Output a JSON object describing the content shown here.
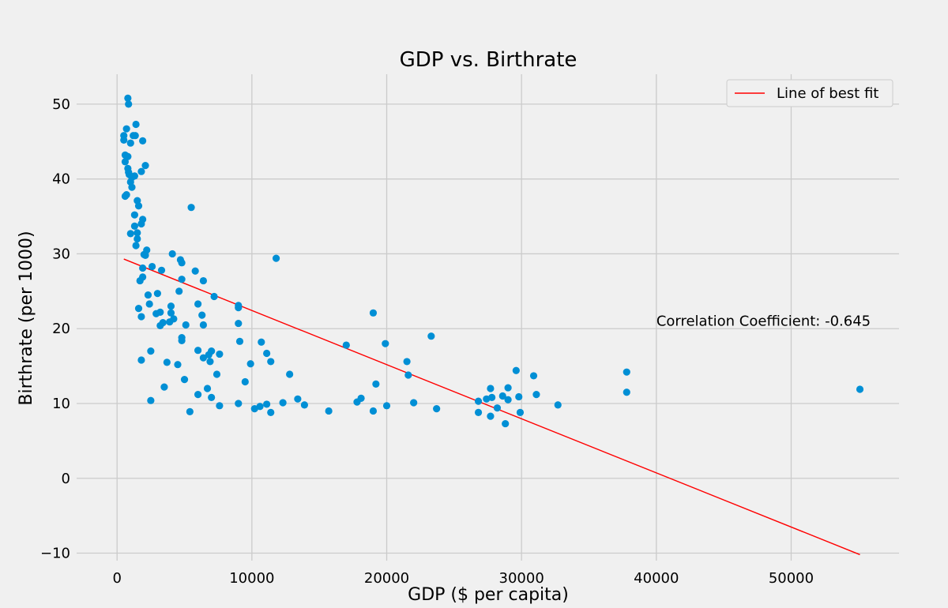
{
  "chart_data": {
    "type": "scatter",
    "title": "GDP vs. Birthrate",
    "xlabel": "GDP ($ per capita)",
    "ylabel": "Birthrate (per 1000)",
    "xlim": [
      -3000,
      58000
    ],
    "ylim": [
      -11,
      54
    ],
    "xticks": [
      0,
      10000,
      20000,
      30000,
      40000,
      50000
    ],
    "xtick_labels": [
      "0",
      "10000",
      "20000",
      "30000",
      "40000",
      "50000"
    ],
    "yticks": [
      -10,
      0,
      10,
      20,
      30,
      40,
      50
    ],
    "ytick_labels": [
      "−10",
      "0",
      "10",
      "20",
      "30",
      "40",
      "50"
    ],
    "grid": true,
    "legend": {
      "position": "top-right",
      "entries": [
        {
          "label": "Line of best fit",
          "color": "#ff0000",
          "marker": "line"
        }
      ]
    },
    "annotation": {
      "text": "Correlation Coefficient: -0.645",
      "x": 40000,
      "y": 20.5
    },
    "point_color": "#008fd5",
    "fit_line": {
      "label": "Line of best fit",
      "color": "#ff0000",
      "x": [
        500,
        55100
      ],
      "y": [
        29.3,
        -10.2
      ]
    },
    "points": [
      [
        800,
        50.8
      ],
      [
        850,
        50
      ],
      [
        1400,
        47.3
      ],
      [
        700,
        46.7
      ],
      [
        1200,
        45.8
      ],
      [
        500,
        45.8
      ],
      [
        1350,
        45.8
      ],
      [
        500,
        45.2
      ],
      [
        1900,
        45.1
      ],
      [
        1000,
        44.8
      ],
      [
        600,
        43.2
      ],
      [
        800,
        43
      ],
      [
        600,
        42.3
      ],
      [
        2100,
        41.8
      ],
      [
        800,
        41.4
      ],
      [
        850,
        40.9
      ],
      [
        1800,
        41
      ],
      [
        900,
        40.6
      ],
      [
        1300,
        40.4
      ],
      [
        1100,
        40.2
      ],
      [
        1000,
        39.6
      ],
      [
        1100,
        38.9
      ],
      [
        700,
        37.9
      ],
      [
        600,
        37.7
      ],
      [
        1500,
        37.1
      ],
      [
        1600,
        36.4
      ],
      [
        5500,
        36.2
      ],
      [
        1300,
        35.2
      ],
      [
        1900,
        34.6
      ],
      [
        1800,
        34
      ],
      [
        1300,
        33.7
      ],
      [
        1500,
        32.8
      ],
      [
        1000,
        32.7
      ],
      [
        1500,
        32
      ],
      [
        1400,
        31.1
      ],
      [
        2200,
        30.5
      ],
      [
        2000,
        29.9
      ],
      [
        4100,
        30
      ],
      [
        2100,
        29.8
      ],
      [
        11800,
        29.4
      ],
      [
        4700,
        29.2
      ],
      [
        4800,
        28.8
      ],
      [
        2600,
        28.3
      ],
      [
        1900,
        28.1
      ],
      [
        3300,
        27.8
      ],
      [
        5800,
        27.7
      ],
      [
        1900,
        26.9
      ],
      [
        4800,
        26.6
      ],
      [
        1700,
        26.4
      ],
      [
        6400,
        26.4
      ],
      [
        4600,
        25
      ],
      [
        3000,
        24.7
      ],
      [
        2300,
        24.5
      ],
      [
        7200,
        24.3
      ],
      [
        6000,
        23.3
      ],
      [
        2400,
        23.3
      ],
      [
        9000,
        23.1
      ],
      [
        4000,
        23
      ],
      [
        9000,
        22.8
      ],
      [
        1600,
        22.7
      ],
      [
        3200,
        22.2
      ],
      [
        2900,
        22
      ],
      [
        19000,
        22.1
      ],
      [
        4000,
        22.1
      ],
      [
        6300,
        21.8
      ],
      [
        1800,
        21.6
      ],
      [
        4200,
        21.3
      ],
      [
        3900,
        20.9
      ],
      [
        3400,
        20.8
      ],
      [
        3200,
        20.4
      ],
      [
        5100,
        20.5
      ],
      [
        6400,
        20.5
      ],
      [
        9000,
        20.7
      ],
      [
        4800,
        18.8
      ],
      [
        9100,
        18.3
      ],
      [
        10700,
        18.2
      ],
      [
        4800,
        18.4
      ],
      [
        23300,
        19
      ],
      [
        17000,
        17.8
      ],
      [
        19900,
        18
      ],
      [
        2500,
        17
      ],
      [
        6000,
        17.1
      ],
      [
        7000,
        17
      ],
      [
        11100,
        16.7
      ],
      [
        7600,
        16.6
      ],
      [
        6800,
        16.5
      ],
      [
        6400,
        16.1
      ],
      [
        1800,
        15.8
      ],
      [
        3700,
        15.5
      ],
      [
        6900,
        15.6
      ],
      [
        11400,
        15.6
      ],
      [
        21500,
        15.6
      ],
      [
        9900,
        15.3
      ],
      [
        4500,
        15.2
      ],
      [
        29600,
        14.4
      ],
      [
        37800,
        14.2
      ],
      [
        7400,
        13.9
      ],
      [
        12800,
        13.9
      ],
      [
        21600,
        13.8
      ],
      [
        30900,
        13.7
      ],
      [
        5000,
        13.2
      ],
      [
        9500,
        12.9
      ],
      [
        19200,
        12.6
      ],
      [
        3500,
        12.2
      ],
      [
        6700,
        12
      ],
      [
        27700,
        12
      ],
      [
        29000,
        12.1
      ],
      [
        55100,
        11.9
      ],
      [
        37800,
        11.5
      ],
      [
        6000,
        11.2
      ],
      [
        31100,
        11.2
      ],
      [
        7000,
        10.8
      ],
      [
        13400,
        10.6
      ],
      [
        18100,
        10.7
      ],
      [
        28600,
        11
      ],
      [
        29800,
        10.9
      ],
      [
        27800,
        10.8
      ],
      [
        27400,
        10.6
      ],
      [
        2500,
        10.4
      ],
      [
        29000,
        10.5
      ],
      [
        12300,
        10.1
      ],
      [
        17800,
        10.2
      ],
      [
        22000,
        10.1
      ],
      [
        26800,
        10.3
      ],
      [
        9000,
        10
      ],
      [
        11100,
        9.9
      ],
      [
        7600,
        9.7
      ],
      [
        10600,
        9.6
      ],
      [
        13900,
        9.8
      ],
      [
        20000,
        9.7
      ],
      [
        32700,
        9.8
      ],
      [
        28200,
        9.4
      ],
      [
        10200,
        9.3
      ],
      [
        23700,
        9.3
      ],
      [
        5400,
        8.9
      ],
      [
        11400,
        8.8
      ],
      [
        15700,
        9
      ],
      [
        19000,
        9
      ],
      [
        26800,
        8.8
      ],
      [
        29900,
        8.8
      ],
      [
        27700,
        8.3
      ],
      [
        28800,
        7.3
      ]
    ]
  }
}
